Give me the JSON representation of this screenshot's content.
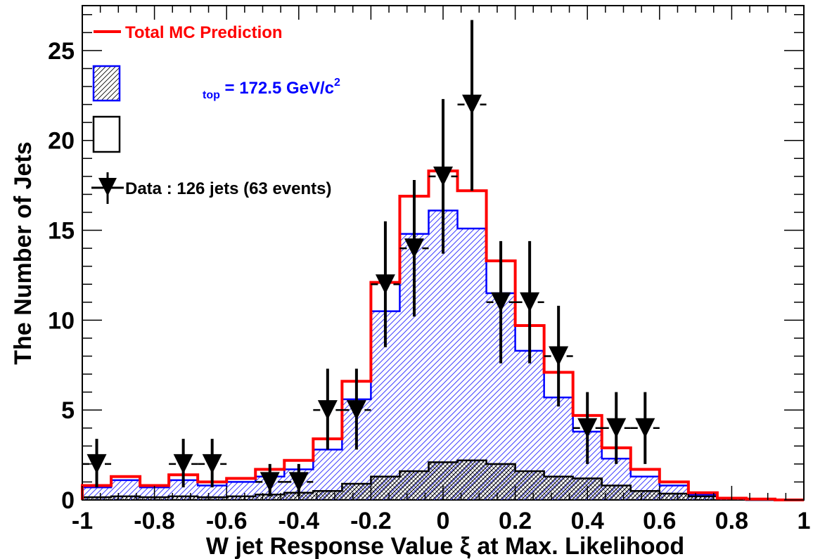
{
  "chart_data": {
    "type": "histogram",
    "xlabel": "W jet Response Value ξ at Max. Likelihood",
    "ylabel": "The Number of Jets",
    "xlim": [
      -1,
      1
    ],
    "ylim": [
      0,
      27.5
    ],
    "x_ticks": [
      "-1",
      "-0.8",
      "-0.6",
      "-0.4",
      "-0.2",
      "0",
      "0.2",
      "0.4",
      "0.6",
      "0.8",
      "1"
    ],
    "y_ticks": [
      "0",
      "5",
      "10",
      "15",
      "20",
      "25"
    ],
    "bin_edges": [
      -1.0,
      -0.92,
      -0.84,
      -0.76,
      -0.68,
      -0.6,
      -0.52,
      -0.44,
      -0.36,
      -0.28,
      -0.2,
      -0.12,
      -0.04,
      0.04,
      0.12,
      0.2,
      0.28,
      0.36,
      0.44,
      0.52,
      0.6,
      0.68,
      0.76,
      0.84,
      0.92,
      1.0
    ],
    "series": [
      {
        "name": "Total MC Prediction",
        "style": "red-step",
        "color": "#ff0000",
        "values": [
          0.8,
          1.3,
          0.8,
          1.4,
          1.0,
          1.2,
          1.7,
          2.2,
          3.4,
          6.6,
          12.1,
          16.9,
          18.3,
          17.2,
          13.3,
          9.7,
          7.1,
          4.7,
          2.9,
          1.7,
          1.0,
          0.4,
          0.1,
          0.05,
          0.0
        ]
      },
      {
        "name": "",
        "style": "blue-hatched",
        "color": "#0000ff",
        "values": [
          0.7,
          1.1,
          0.7,
          1.1,
          0.8,
          1.0,
          1.3,
          1.7,
          2.8,
          5.6,
          10.5,
          14.8,
          16.1,
          15.1,
          11.5,
          8.3,
          5.7,
          3.8,
          2.3,
          1.3,
          0.8,
          0.3,
          0.1,
          0.0,
          0.0
        ]
      },
      {
        "name": "",
        "style": "black-hatched",
        "color": "#000000",
        "values": [
          0.15,
          0.2,
          0.15,
          0.2,
          0.15,
          0.2,
          0.3,
          0.4,
          0.5,
          0.9,
          1.3,
          1.6,
          2.1,
          2.2,
          2.0,
          1.6,
          1.3,
          1.2,
          0.8,
          0.5,
          0.35,
          0.2,
          0.1,
          0.0,
          0.0
        ]
      }
    ],
    "data_points": {
      "name": "Data : 126 jets (63 events)",
      "x": [
        -0.96,
        -0.72,
        -0.64,
        -0.48,
        -0.4,
        -0.32,
        -0.24,
        -0.16,
        -0.08,
        0.0,
        0.08,
        0.16,
        0.24,
        0.32,
        0.4,
        0.48,
        0.56
      ],
      "y": [
        2,
        2,
        2,
        1,
        1,
        5,
        5,
        12,
        14,
        18,
        22,
        11,
        11,
        8,
        4,
        4,
        4
      ],
      "yerr_low": [
        1.3,
        1.3,
        1.3,
        0.8,
        0.8,
        2.2,
        2.2,
        3.5,
        3.8,
        4.3,
        4.8,
        3.4,
        3.4,
        2.8,
        2.0,
        2.0,
        2.0
      ],
      "yerr_high": [
        1.4,
        1.4,
        1.4,
        1.0,
        1.0,
        2.3,
        2.3,
        3.5,
        3.8,
        4.3,
        4.7,
        3.4,
        3.4,
        2.8,
        2.0,
        2.0,
        2.0
      ],
      "xerr": 0.04
    },
    "legend": {
      "placement": "top-left",
      "entries": [
        "Total MC Prediction",
        "",
        "",
        "Data : 126 jets (63 events)"
      ]
    },
    "annotation": {
      "subscript": "top",
      "main": " = 172.5 GeV/c",
      "superscript": "2"
    },
    "grid": false
  }
}
